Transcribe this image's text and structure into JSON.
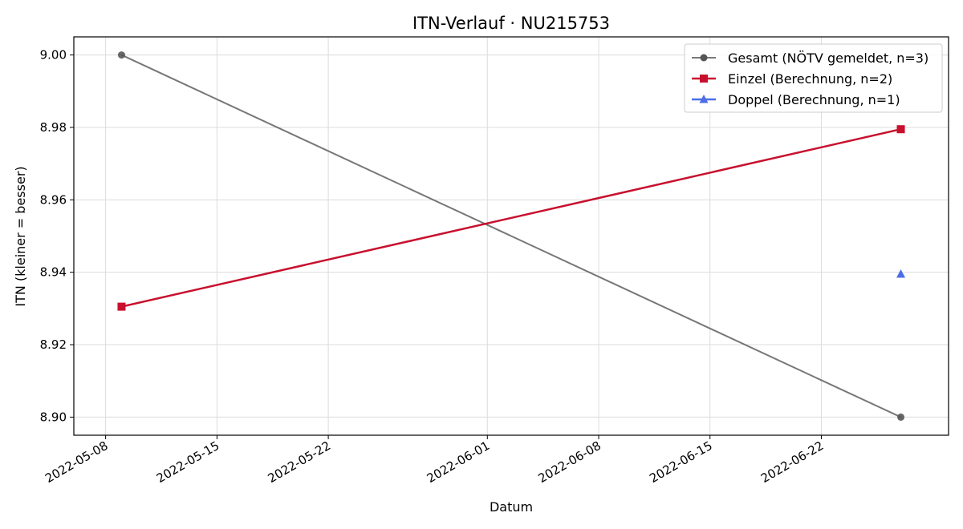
{
  "chart_data": {
    "type": "line",
    "title": "ITN-Verlauf · NU215753",
    "xlabel": "Datum",
    "ylabel": "ITN  (kleiner = besser)",
    "x_type": "date",
    "xlim": [
      "2022-05-06",
      "2022-06-30"
    ],
    "ylim": [
      8.895,
      9.005
    ],
    "x_ticks": [
      "2022-05-08",
      "2022-05-15",
      "2022-05-22",
      "2022-06-01",
      "2022-06-08",
      "2022-06-15",
      "2022-06-22"
    ],
    "y_ticks": [
      "9.00",
      "8.98",
      "8.96",
      "8.94",
      "8.92",
      "8.90"
    ],
    "grid": true,
    "legend_position": "top-right",
    "series": [
      {
        "name": "Gesamt (NÖTV gemeldet, n=3)",
        "color": "#555555",
        "marker": "circle",
        "points": [
          {
            "x": "2022-05-09",
            "y": 9.0
          },
          {
            "x": "2022-06-27",
            "y": 8.9
          }
        ]
      },
      {
        "name": "Einzel (Berechnung, n=2)",
        "color": "#c8102e",
        "marker": "square",
        "points": [
          {
            "x": "2022-05-09",
            "y": 8.9305
          },
          {
            "x": "2022-06-27",
            "y": 8.9795
          }
        ]
      },
      {
        "name": "Doppel (Berechnung, n=1)",
        "color": "#4b6ee8",
        "marker": "triangle",
        "points": [
          {
            "x": "2022-06-27",
            "y": 8.9395
          }
        ]
      }
    ]
  }
}
